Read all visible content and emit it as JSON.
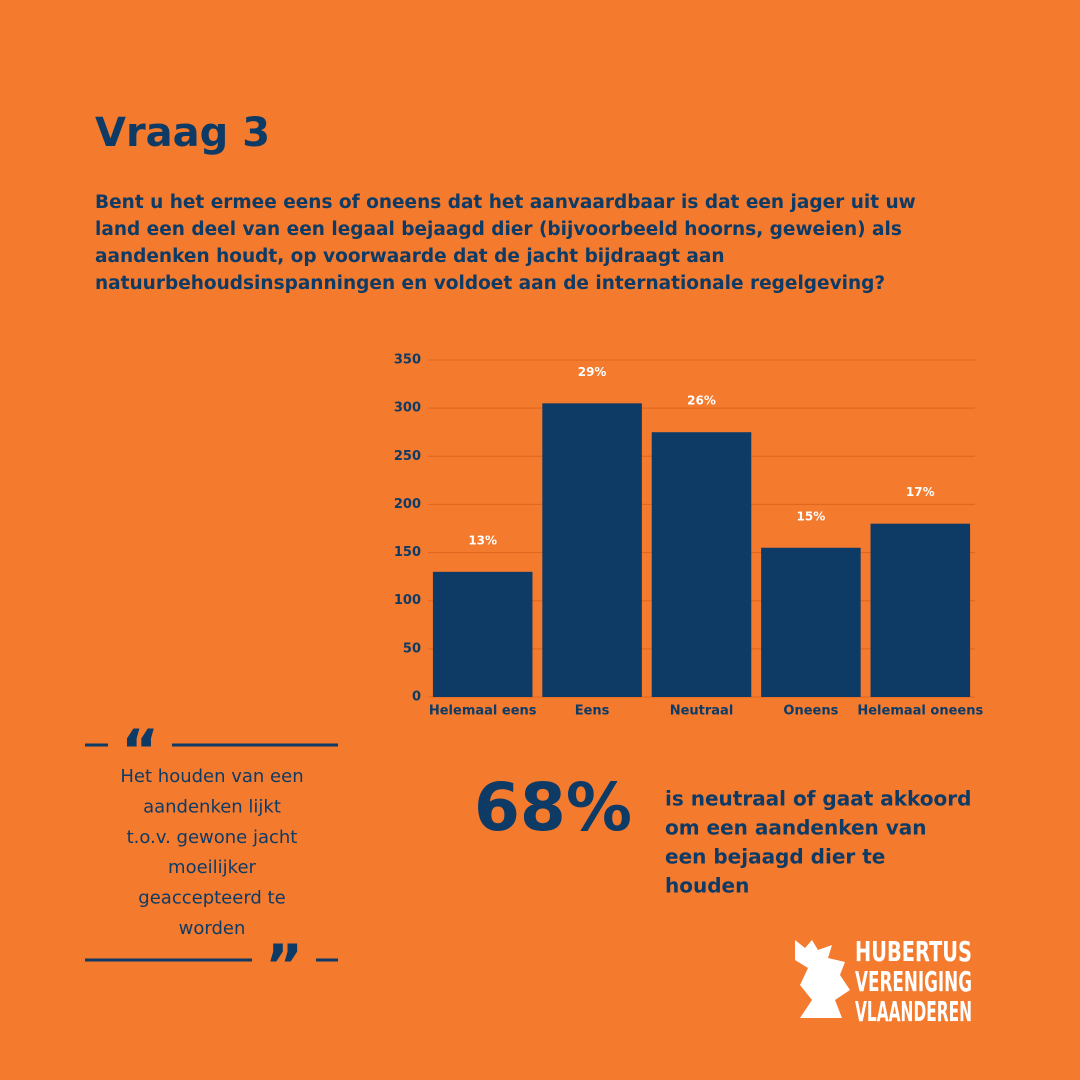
{
  "title": "Vraag 3",
  "question_lines": [
    "Bent u het ermee eens of oneens dat het aanvaardbaar is dat een jager uit uw",
    "land een deel van een legaal bejaagd dier (bijvoorbeeld hoorns, geweien) als",
    "aandenken houdt, op voorwaarde dat de jacht bijdraagt aan",
    "natuurbehoudsinspanningen en voldoet aan de internationale regelgeving?"
  ],
  "chart_data": {
    "type": "bar",
    "categories": [
      "Helemaal eens",
      "Eens",
      "Neutraal",
      "Oneens",
      "Helemaal oneens"
    ],
    "values": [
      130,
      305,
      275,
      155,
      180
    ],
    "percent_labels": [
      "13%",
      "29%",
      "26%",
      "15%",
      "17%"
    ],
    "color": "#0d3b66",
    "ylim": [
      0,
      350
    ],
    "yticks": [
      0,
      50,
      100,
      150,
      200,
      250,
      300,
      350
    ],
    "grid": true
  },
  "quote_marks": [
    "“",
    "”"
  ],
  "quote_lines": [
    "Het houden van een",
    "aandenken lijkt",
    "t.o.v. gewone jacht",
    "moeilijker",
    "geaccepteerd te",
    "worden"
  ],
  "stat": "68%",
  "stat_lines": [
    "is neutraal of gaat akkoord",
    "om een aandenken van",
    "een bejaagd dier te",
    "houden"
  ],
  "logo_lines": [
    "HUBERTUS",
    "VERENIGING",
    "VLAANDEREN"
  ]
}
